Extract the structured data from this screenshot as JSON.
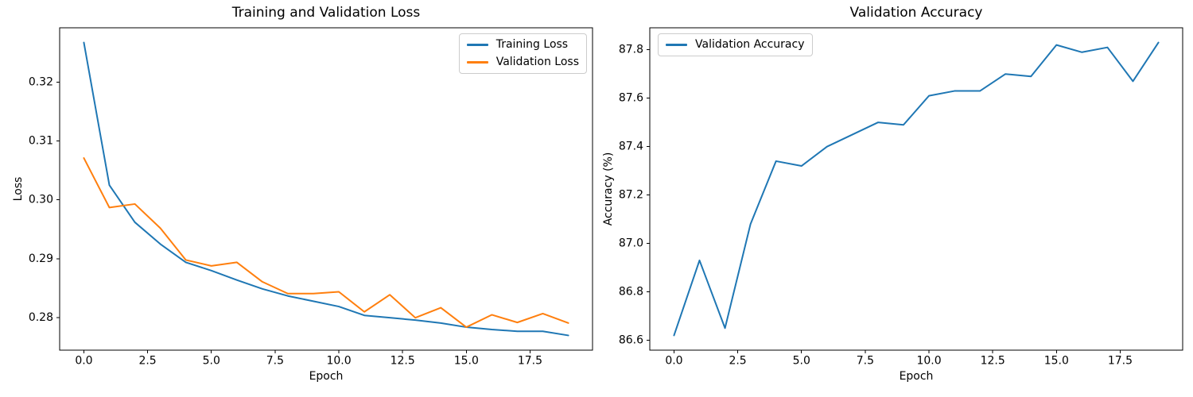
{
  "figure": {
    "background": "#ffffff",
    "spine_color": "#000000",
    "text_color": "#000000"
  },
  "chart_data": [
    {
      "type": "line",
      "title": "Training and Validation Loss",
      "xlabel": "Epoch",
      "ylabel": "Loss",
      "grid": false,
      "legend_position": "top-right",
      "xlim": [
        -0.95,
        19.95
      ],
      "ylim": [
        0.2745,
        0.3292
      ],
      "xticks": {
        "values": [
          0,
          2.5,
          5,
          7.5,
          10,
          12.5,
          15,
          17.5
        ],
        "labels": [
          "0.0",
          "2.5",
          "5.0",
          "7.5",
          "10.0",
          "12.5",
          "15.0",
          "17.5"
        ]
      },
      "yticks": {
        "values": [
          0.28,
          0.29,
          0.3,
          0.31,
          0.32
        ],
        "labels": [
          "0.28",
          "0.29",
          "0.30",
          "0.31",
          "0.32"
        ]
      },
      "x": [
        0,
        1,
        2,
        3,
        4,
        5,
        6,
        7,
        8,
        9,
        10,
        11,
        12,
        13,
        14,
        15,
        16,
        17,
        18,
        19
      ],
      "series": [
        {
          "name": "Training Loss",
          "color": "#1f77b4",
          "values": [
            0.3267,
            0.3025,
            0.2962,
            0.2925,
            0.2894,
            0.288,
            0.2864,
            0.2849,
            0.2837,
            0.2828,
            0.2819,
            0.2804,
            0.28,
            0.2796,
            0.2791,
            0.2784,
            0.278,
            0.2777,
            0.2777,
            0.277
          ]
        },
        {
          "name": "Validation Loss",
          "color": "#ff7f0e",
          "values": [
            0.3071,
            0.2987,
            0.2993,
            0.2952,
            0.2898,
            0.2888,
            0.2894,
            0.2861,
            0.2841,
            0.2841,
            0.2844,
            0.281,
            0.2839,
            0.28,
            0.2817,
            0.2784,
            0.2805,
            0.2792,
            0.2807,
            0.2791
          ]
        }
      ]
    },
    {
      "type": "line",
      "title": "Validation Accuracy",
      "xlabel": "Epoch",
      "ylabel": "Accuracy (%)",
      "grid": false,
      "legend_position": "top-left",
      "xlim": [
        -0.95,
        19.95
      ],
      "ylim": [
        86.559,
        87.891
      ],
      "xticks": {
        "values": [
          0,
          2.5,
          5,
          7.5,
          10,
          12.5,
          15,
          17.5
        ],
        "labels": [
          "0.0",
          "2.5",
          "5.0",
          "7.5",
          "10.0",
          "12.5",
          "15.0",
          "17.5"
        ]
      },
      "yticks": {
        "values": [
          86.6,
          86.8,
          87.0,
          87.2,
          87.4,
          87.6,
          87.8
        ],
        "labels": [
          "86.6",
          "86.8",
          "87.0",
          "87.2",
          "87.4",
          "87.6",
          "87.8"
        ]
      },
      "x": [
        0,
        1,
        2,
        3,
        4,
        5,
        6,
        7,
        8,
        9,
        10,
        11,
        12,
        13,
        14,
        15,
        16,
        17,
        18,
        19
      ],
      "series": [
        {
          "name": "Validation Accuracy",
          "color": "#1f77b4",
          "values": [
            86.62,
            86.93,
            86.65,
            87.08,
            87.34,
            87.32,
            87.4,
            87.45,
            87.5,
            87.49,
            87.61,
            87.63,
            87.63,
            87.7,
            87.69,
            87.82,
            87.79,
            87.81,
            87.67,
            87.83
          ]
        }
      ]
    }
  ]
}
